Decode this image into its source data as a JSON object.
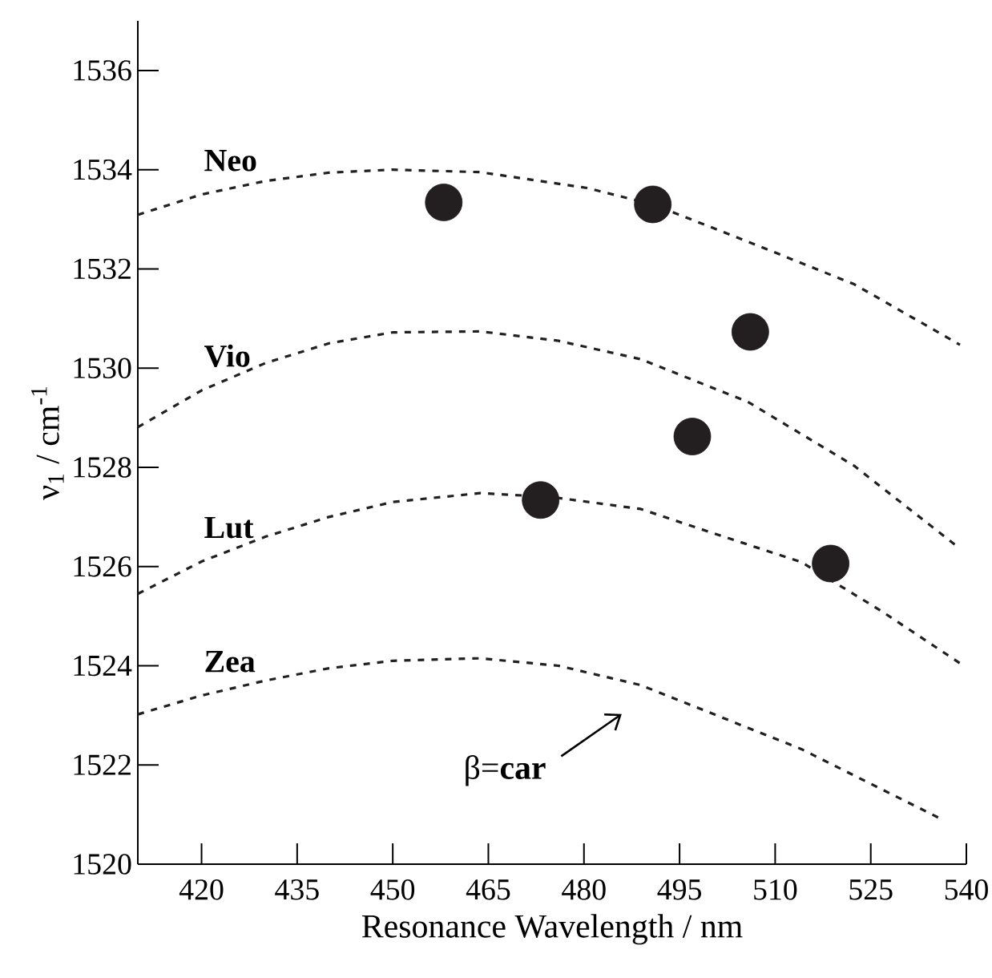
{
  "chart_data": {
    "type": "scatter",
    "xlabel": "Resonance Wavelength / nm",
    "ylabel": "ν$_{1}$ / cm$^{-1}$",
    "xlim": [
      410,
      540
    ],
    "ylim": [
      1520,
      1537
    ],
    "xticks": [
      420,
      435,
      450,
      465,
      480,
      495,
      510,
      525,
      540
    ],
    "yticks": [
      1520,
      1522,
      1524,
      1526,
      1528,
      1530,
      1532,
      1534,
      1536
    ],
    "series": [
      {
        "marker": "circle",
        "color": "#231f20",
        "x": [
          458.0,
          490.8,
          506.1,
          497.0,
          473.2,
          518.7
        ],
        "values": [
          1533.34,
          1533.3,
          1530.73,
          1528.62,
          1527.34,
          1526.06
        ]
      },
      {
        "type": "line",
        "name": "Neo",
        "color": "#231f20",
        "line_style": "dashed",
        "x": [
          410,
          420,
          430,
          440,
          450,
          463.7,
          480.5,
          490.8,
          505.7,
          522.4,
          539
        ],
        "values": [
          1533.09,
          1533.5,
          1533.77,
          1533.94,
          1534.0,
          1533.95,
          1533.63,
          1533.3,
          1532.55,
          1531.69,
          1530.47
        ]
      },
      {
        "type": "line",
        "name": "Vio",
        "color": "#231f20",
        "line_style": "dashed",
        "x": [
          410,
          420,
          430,
          440,
          450,
          463.7,
          476,
          488.9,
          505.7,
          522.4,
          539
        ],
        "values": [
          1528.81,
          1529.55,
          1530.1,
          1530.5,
          1530.72,
          1530.74,
          1530.55,
          1530.18,
          1529.32,
          1528.03,
          1526.36
        ]
      },
      {
        "type": "line",
        "name": "Lut",
        "color": "#231f20",
        "line_style": "dashed",
        "x": [
          410,
          420,
          430,
          440,
          450,
          463.7,
          475,
          488.9,
          501.5,
          514.1,
          526.7,
          539
        ],
        "values": [
          1525.45,
          1526.1,
          1526.6,
          1527.0,
          1527.3,
          1527.48,
          1527.4,
          1527.16,
          1526.62,
          1526.09,
          1525.1,
          1524.05
        ]
      },
      {
        "type": "line",
        "name": "Zea",
        "color": "#231f20",
        "line_style": "dashed",
        "x": [
          410,
          420,
          430,
          440,
          450,
          463.7,
          476,
          488.9,
          514.1,
          535.9
        ],
        "values": [
          1523.02,
          1523.4,
          1523.7,
          1523.95,
          1524.1,
          1524.15,
          1524.0,
          1523.61,
          1522.32,
          1520.92
        ]
      }
    ],
    "annotations": [
      "β=**car**"
    ]
  }
}
